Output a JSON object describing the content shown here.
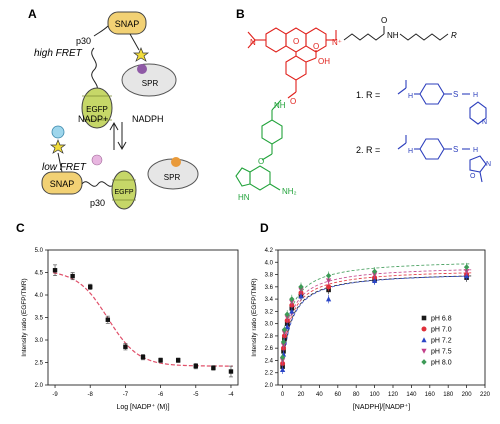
{
  "panels": {
    "a": {
      "label": "A",
      "high_fret": "high FRET",
      "low_fret": "low FRET",
      "snap": "SNAP",
      "egfp": "EGFP",
      "spr": "SPR",
      "p30": "p30",
      "nadp_plus": "NADP+",
      "nadph": "NADPH"
    },
    "b": {
      "label": "B",
      "r_group": "R",
      "compound1": "1. R =",
      "compound2": "2. R =",
      "atoms": {
        "N": "N",
        "O": "O",
        "OH": "OH",
        "NH": "NH",
        "HN": "HN",
        "H": "H",
        "S": "S",
        "Nplus": "N⁺",
        "NH2": "NH₂"
      }
    },
    "c": {
      "label": "C"
    },
    "d": {
      "label": "D"
    }
  },
  "colors": {
    "snap": "#f2d174",
    "egfp": "#c6d768",
    "spr": "#e6e6e6",
    "fluor_red": "#e0201b",
    "bg_green": "#22a33b",
    "r_blue": "#2d3fbd",
    "fit_red": "#e0506a"
  },
  "chart_data": [
    {
      "type": "scatter",
      "title": "",
      "xlabel": "Log [NADP⁺ (M)]",
      "ylabel": "Intensity ratio (EGFP/TMR)",
      "xlim": [
        -9.2,
        -3.8
      ],
      "ylim": [
        2.0,
        5.0
      ],
      "xticks": [
        -9,
        -8,
        -7,
        -6,
        -5,
        -4
      ],
      "yticks": [
        2.0,
        2.5,
        3.0,
        3.5,
        4.0,
        4.5,
        5.0
      ],
      "ytick_labels": [
        "2.0",
        "2.5",
        "3.0",
        "3.5",
        "4.0",
        "4.5",
        "5.0"
      ],
      "series": [
        {
          "x": [
            -9,
            -8.5,
            -8,
            -7.5,
            -7,
            -6.5,
            -6,
            -5.5,
            -5,
            -4.5,
            -4
          ],
          "y": [
            4.55,
            4.42,
            4.18,
            3.45,
            2.85,
            2.62,
            2.55,
            2.55,
            2.42,
            2.38,
            2.3
          ],
          "err": [
            0.12,
            0.08,
            0.06,
            0.08,
            0.07,
            0.06,
            0.05,
            0.05,
            0.06,
            0.05,
            0.12
          ]
        }
      ],
      "fit": {
        "type": "sigmoid",
        "top": 4.55,
        "bottom": 2.42,
        "logEC50": -7.5,
        "hill": 1.0
      }
    },
    {
      "type": "scatter",
      "title": "",
      "xlabel": "[NADPH]/[NADP⁺]",
      "ylabel": "Intensity ratio (EGFP/TMR)",
      "xlim": [
        -5,
        220
      ],
      "ylim": [
        2.0,
        4.2
      ],
      "xticks": [
        0,
        20,
        40,
        60,
        80,
        100,
        120,
        140,
        160,
        180,
        200,
        220
      ],
      "yticks": [
        2.0,
        2.2,
        2.4,
        2.6,
        2.8,
        3.0,
        3.2,
        3.4,
        3.6,
        3.8,
        4.0,
        4.2
      ],
      "ytick_labels": [
        "2.0",
        "2.2",
        "2.4",
        "2.6",
        "2.8",
        "3.0",
        "3.2",
        "3.4",
        "3.6",
        "3.8",
        "4.0",
        "4.2"
      ],
      "legend_position": "right",
      "x": [
        0,
        1,
        2,
        5,
        10,
        20,
        50,
        100,
        200
      ],
      "series": [
        {
          "name": "pH 6.8",
          "color": "#1a1a1a",
          "marker": "square",
          "y": [
            2.3,
            2.55,
            2.75,
            3.0,
            3.25,
            3.45,
            3.55,
            3.72,
            3.75
          ]
        },
        {
          "name": "pH 7.0",
          "color": "#e0303a",
          "marker": "circle",
          "y": [
            2.35,
            2.6,
            2.8,
            3.05,
            3.3,
            3.5,
            3.6,
            3.75,
            3.8
          ]
        },
        {
          "name": "pH 7.2",
          "color": "#2a45c6",
          "marker": "triangle",
          "y": [
            2.25,
            2.5,
            2.7,
            2.95,
            3.2,
            3.45,
            3.4,
            3.7,
            3.78
          ]
        },
        {
          "name": "pH 7.5",
          "color": "#c2408a",
          "marker": "triangle-down",
          "y": [
            2.4,
            2.65,
            2.85,
            3.1,
            3.35,
            3.55,
            3.7,
            3.8,
            3.85
          ]
        },
        {
          "name": "pH 8.0",
          "color": "#3d9a56",
          "marker": "diamond",
          "y": [
            2.45,
            2.7,
            2.9,
            3.15,
            3.4,
            3.6,
            3.78,
            3.85,
            3.92
          ]
        }
      ],
      "fit": {
        "type": "hyperbolic",
        "params": [
          {
            "base": 2.3,
            "amp": 1.55,
            "k": 10
          },
          {
            "base": 2.35,
            "amp": 1.55,
            "k": 10
          },
          {
            "base": 2.25,
            "amp": 1.6,
            "k": 10
          },
          {
            "base": 2.4,
            "amp": 1.55,
            "k": 10
          },
          {
            "base": 2.45,
            "amp": 1.6,
            "k": 10
          }
        ]
      }
    }
  ]
}
